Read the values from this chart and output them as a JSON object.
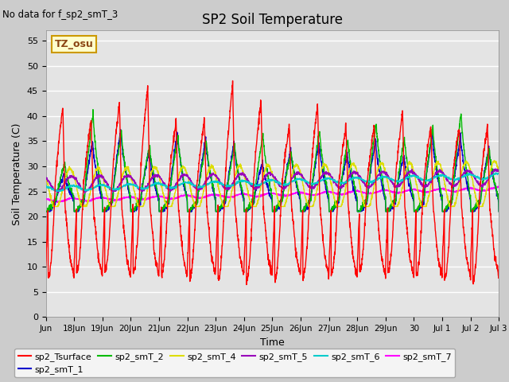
{
  "title": "SP2 Soil Temperature",
  "no_data_text": "No data for f_sp2_smT_3",
  "tz_label": "TZ_osu",
  "xlabel": "Time",
  "ylabel": "Soil Temperature (C)",
  "ylim": [
    0,
    57
  ],
  "yticks": [
    0,
    5,
    10,
    15,
    20,
    25,
    30,
    35,
    40,
    45,
    50,
    55
  ],
  "fig_facecolor": "#d4d4d4",
  "plot_bg_color": "#e8e8e8",
  "grid_color": "#ffffff",
  "series_colors": {
    "sp2_Tsurface": "#ff0000",
    "sp2_smT_1": "#0000cc",
    "sp2_smT_2": "#00bb00",
    "sp2_smT_4": "#dddd00",
    "sp2_smT_5": "#9900bb",
    "sp2_smT_6": "#00cccc",
    "sp2_smT_7": "#ff00ff"
  },
  "x_tick_labels": [
    "Jun",
    "18Jun",
    "19Jun",
    "20Jun",
    "21Jun",
    "22Jun",
    "23Jun",
    "24Jun",
    "25Jun",
    "26Jun",
    "27Jun",
    "28Jun",
    "29Jun",
    "30",
    "Jul 1",
    "Jul 2",
    "Jul 3"
  ],
  "legend_order": [
    "sp2_Tsurface",
    "sp2_smT_1",
    "sp2_smT_2",
    "sp2_smT_4",
    "sp2_smT_5",
    "sp2_smT_6",
    "sp2_smT_7"
  ]
}
